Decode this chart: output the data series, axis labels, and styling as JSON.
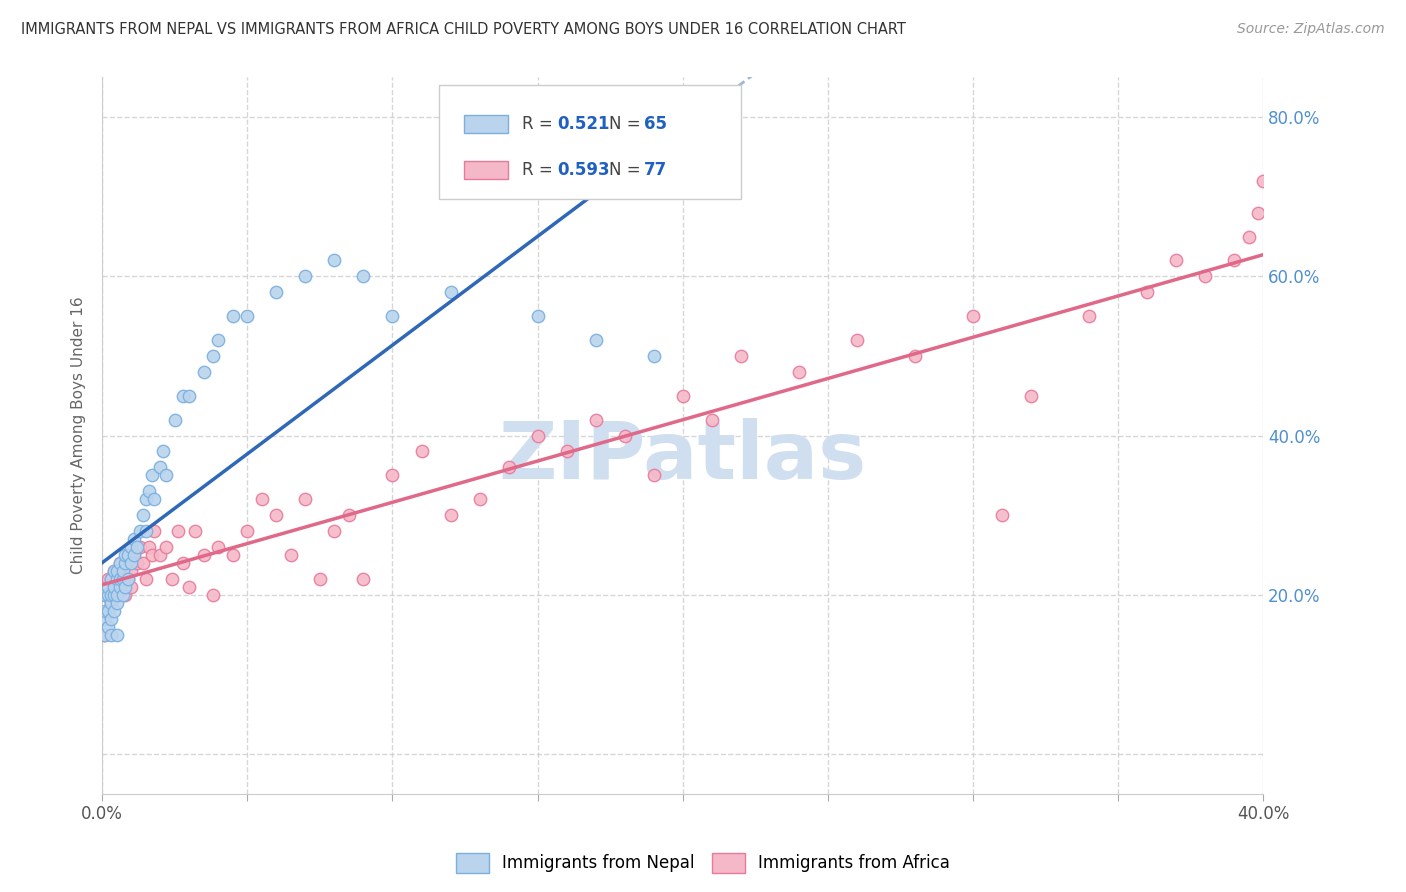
{
  "title": "IMMIGRANTS FROM NEPAL VS IMMIGRANTS FROM AFRICA CHILD POVERTY AMONG BOYS UNDER 16 CORRELATION CHART",
  "source": "Source: ZipAtlas.com",
  "ylabel": "Child Poverty Among Boys Under 16",
  "xlim": [
    0.0,
    0.4
  ],
  "ylim": [
    -0.05,
    0.85
  ],
  "ytick_vals": [
    0.0,
    0.2,
    0.4,
    0.6,
    0.8
  ],
  "ytick_labels": [
    "",
    "20.0%",
    "40.0%",
    "60.0%",
    "80.0%"
  ],
  "xtick_vals": [
    0.0,
    0.05,
    0.1,
    0.15,
    0.2,
    0.25,
    0.3,
    0.35,
    0.4
  ],
  "nepal_color": "#bad4ed",
  "africa_color": "#f5b8c8",
  "nepal_edge_color": "#7aafe0",
  "africa_edge_color": "#e87a9a",
  "line_nepal_color": "#3068b8",
  "line_nepal_dashed_color": "#a0b8d8",
  "line_africa_color": "#e06888",
  "R_nepal": 0.521,
  "N_nepal": 65,
  "R_africa": 0.593,
  "N_africa": 77,
  "watermark_text": "ZIPatlas",
  "watermark_color": "#d0dff0",
  "background_color": "#ffffff",
  "grid_color": "#cccccc",
  "nepal_x": [
    0.0005,
    0.001,
    0.001,
    0.001,
    0.002,
    0.002,
    0.002,
    0.002,
    0.003,
    0.003,
    0.003,
    0.003,
    0.003,
    0.004,
    0.004,
    0.004,
    0.004,
    0.005,
    0.005,
    0.005,
    0.005,
    0.005,
    0.006,
    0.006,
    0.006,
    0.007,
    0.007,
    0.007,
    0.008,
    0.008,
    0.008,
    0.009,
    0.009,
    0.01,
    0.01,
    0.011,
    0.011,
    0.012,
    0.013,
    0.014,
    0.015,
    0.015,
    0.016,
    0.017,
    0.018,
    0.02,
    0.021,
    0.022,
    0.025,
    0.028,
    0.03,
    0.035,
    0.038,
    0.04,
    0.045,
    0.05,
    0.06,
    0.07,
    0.08,
    0.09,
    0.1,
    0.12,
    0.15,
    0.17,
    0.19
  ],
  "nepal_y": [
    0.15,
    0.17,
    0.18,
    0.2,
    0.16,
    0.18,
    0.2,
    0.21,
    0.17,
    0.19,
    0.2,
    0.22,
    0.15,
    0.18,
    0.2,
    0.21,
    0.23,
    0.19,
    0.2,
    0.22,
    0.23,
    0.15,
    0.21,
    0.22,
    0.24,
    0.2,
    0.22,
    0.23,
    0.21,
    0.24,
    0.25,
    0.22,
    0.25,
    0.24,
    0.26,
    0.25,
    0.27,
    0.26,
    0.28,
    0.3,
    0.28,
    0.32,
    0.33,
    0.35,
    0.32,
    0.36,
    0.38,
    0.35,
    0.42,
    0.45,
    0.45,
    0.48,
    0.5,
    0.52,
    0.55,
    0.55,
    0.58,
    0.6,
    0.62,
    0.6,
    0.55,
    0.58,
    0.55,
    0.52,
    0.5
  ],
  "africa_x": [
    0.001,
    0.001,
    0.002,
    0.002,
    0.002,
    0.003,
    0.003,
    0.003,
    0.004,
    0.004,
    0.005,
    0.005,
    0.006,
    0.006,
    0.007,
    0.007,
    0.008,
    0.008,
    0.009,
    0.009,
    0.01,
    0.01,
    0.011,
    0.012,
    0.013,
    0.014,
    0.015,
    0.016,
    0.017,
    0.018,
    0.02,
    0.022,
    0.024,
    0.026,
    0.028,
    0.03,
    0.032,
    0.035,
    0.038,
    0.04,
    0.045,
    0.05,
    0.055,
    0.06,
    0.065,
    0.07,
    0.075,
    0.08,
    0.085,
    0.09,
    0.1,
    0.11,
    0.12,
    0.13,
    0.14,
    0.15,
    0.16,
    0.17,
    0.18,
    0.19,
    0.2,
    0.21,
    0.22,
    0.24,
    0.26,
    0.28,
    0.3,
    0.31,
    0.32,
    0.34,
    0.36,
    0.37,
    0.38,
    0.39,
    0.395,
    0.398,
    0.4
  ],
  "africa_y": [
    0.15,
    0.2,
    0.18,
    0.22,
    0.2,
    0.19,
    0.22,
    0.2,
    0.21,
    0.23,
    0.2,
    0.22,
    0.22,
    0.24,
    0.21,
    0.23,
    0.22,
    0.2,
    0.24,
    0.22,
    0.23,
    0.21,
    0.25,
    0.24,
    0.26,
    0.24,
    0.22,
    0.26,
    0.25,
    0.28,
    0.25,
    0.26,
    0.22,
    0.28,
    0.24,
    0.21,
    0.28,
    0.25,
    0.2,
    0.26,
    0.25,
    0.28,
    0.32,
    0.3,
    0.25,
    0.32,
    0.22,
    0.28,
    0.3,
    0.22,
    0.35,
    0.38,
    0.3,
    0.32,
    0.36,
    0.4,
    0.38,
    0.42,
    0.4,
    0.35,
    0.45,
    0.42,
    0.5,
    0.48,
    0.52,
    0.5,
    0.55,
    0.3,
    0.45,
    0.55,
    0.58,
    0.62,
    0.6,
    0.62,
    0.65,
    0.68,
    0.72
  ]
}
